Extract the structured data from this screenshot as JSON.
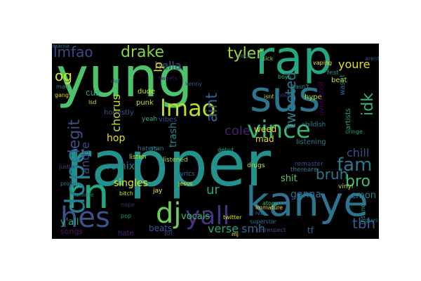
{
  "word_cloud": {
    "background": "#000000",
    "words": [
      {
        "text": "yung",
        "color": "#4cc26c"
      },
      {
        "text": "rapper",
        "color": "#23918c"
      },
      {
        "text": "rap",
        "color": "#26a784"
      },
      {
        "text": "sus",
        "color": "#2b768e"
      },
      {
        "text": "kanye",
        "color": "#2c738e"
      },
      {
        "text": "rn",
        "color": "#22a785"
      },
      {
        "text": "vince",
        "color": "#34b879"
      },
      {
        "text": "dope",
        "color": "#287d8e"
      },
      {
        "text": "lmao",
        "color": "#b8de29"
      },
      {
        "text": "hes",
        "color": "#3b538b"
      },
      {
        "text": "dj",
        "color": "#6ccd5a"
      },
      {
        "text": "yall",
        "color": "#46327e"
      },
      {
        "text": "drake",
        "color": "#84d44b"
      },
      {
        "text": "lmfao",
        "color": "#3e4a89"
      },
      {
        "text": "tyler",
        "color": "#a2da37"
      },
      {
        "text": "fam",
        "color": "#2a788e"
      },
      {
        "text": "tweeted",
        "color": "#2a7b8e"
      },
      {
        "text": "legit",
        "color": "#3c4f8a"
      },
      {
        "text": "og",
        "color": "#dde318"
      },
      {
        "text": "aint",
        "color": "#32648e"
      },
      {
        "text": "cole",
        "color": "#481e6f"
      },
      {
        "text": "tbh",
        "color": "#355e8d"
      },
      {
        "text": "bro",
        "color": "#3fbc73"
      },
      {
        "text": "bruh",
        "color": "#2a788e"
      },
      {
        "text": "idk",
        "color": "#31b57b"
      },
      {
        "text": "smh",
        "color": "#2f6b8e"
      },
      {
        "text": "verse",
        "color": "#22a884"
      },
      {
        "text": "chill",
        "color": "#3d4d8a"
      },
      {
        "text": "andre",
        "color": "#3e4989"
      },
      {
        "text": "hop",
        "color": "#e5e419"
      },
      {
        "text": "chorus",
        "color": "#c8e020"
      },
      {
        "text": "singles",
        "color": "#e3e418"
      },
      {
        "text": "remix",
        "color": "#26818e"
      },
      {
        "text": "hella",
        "color": "#3b528b"
      },
      {
        "text": "youre",
        "color": "#dde318"
      },
      {
        "text": "cmon",
        "color": "#24868e"
      },
      {
        "text": "gonna",
        "color": "#2c718e"
      },
      {
        "text": "shit",
        "color": "#5ec962"
      },
      {
        "text": "lp",
        "color": "#ece51b"
      },
      {
        "text": "beats",
        "color": "#39568c"
      },
      {
        "text": "ur",
        "color": "#22a785"
      },
      {
        "text": "tf",
        "color": "#34618d"
      },
      {
        "text": "trash",
        "color": "#24878e"
      },
      {
        "text": "vocals",
        "color": "#3aba76"
      },
      {
        "text": "y'all",
        "color": "#25ac82"
      },
      {
        "text": "songs",
        "color": "#481c6e"
      },
      {
        "text": "weed",
        "color": "#ece51b"
      },
      {
        "text": "mad",
        "color": "#dde318"
      },
      {
        "text": "cuz",
        "color": "#1fa088"
      },
      {
        "text": "dude",
        "color": "#cae11f"
      },
      {
        "text": "punk",
        "color": "#cae11f"
      },
      {
        "text": "vibes",
        "color": "#3e4c8a"
      },
      {
        "text": "hate",
        "color": "#482475"
      },
      {
        "text": "lol",
        "color": "#453882"
      },
      {
        "text": "hype",
        "color": "#c8e020"
      },
      {
        "text": "listening",
        "color": "#287c8e"
      },
      {
        "text": "wasnt",
        "color": "#2c718e"
      },
      {
        "text": "beat",
        "color": "#bddf26"
      },
      {
        "text": "artists",
        "color": "#20a386"
      },
      {
        "text": "overrated",
        "color": "#440154"
      },
      {
        "text": "honestly",
        "color": "#38588c"
      },
      {
        "text": "haters",
        "color": "#2f6c8e"
      },
      {
        "text": "stan",
        "color": "#25848e"
      },
      {
        "text": "drugs",
        "color": "#c0df25"
      },
      {
        "text": "listened",
        "color": "#a2da37"
      },
      {
        "text": "yeah",
        "color": "#2fb47c"
      },
      {
        "text": "jay",
        "color": "#fde725"
      },
      {
        "text": "lyrics",
        "color": "#2d708e"
      },
      {
        "text": "remaster",
        "color": "#3e4a89"
      },
      {
        "text": "fest",
        "color": "#21918c"
      },
      {
        "text": "vinyl",
        "color": "#c0df25"
      },
      {
        "text": "insane",
        "color": "#21918c"
      },
      {
        "text": "childish",
        "color": "#26818e"
      },
      {
        "text": "thereare",
        "color": "#2a788e"
      },
      {
        "text": "listen",
        "color": "#cae11f"
      },
      {
        "text": "vocal",
        "color": "#2c728e"
      },
      {
        "text": "bout",
        "color": "#433e85"
      },
      {
        "text": "boys",
        "color": "#2fb47c"
      },
      {
        "text": "justin",
        "color": "#3f4788"
      },
      {
        "text": "prolly",
        "color": "#26828e"
      },
      {
        "text": "jesus",
        "color": "#dde318"
      },
      {
        "text": "debut",
        "color": "#27ad81"
      },
      {
        "text": "superstar",
        "color": "#2d708e"
      },
      {
        "text": "immature",
        "color": "#dde318"
      },
      {
        "text": "disrespect",
        "color": "#3f4788"
      },
      {
        "text": "twitter",
        "color": "#dde318"
      },
      {
        "text": "cringe",
        "color": "#20a386"
      },
      {
        "text": "tweets",
        "color": "#481467"
      },
      {
        "text": "kenny",
        "color": "#3b528b"
      },
      {
        "text": "arent",
        "color": "#39558c"
      },
      {
        "text": "guys",
        "color": "#2a788e"
      },
      {
        "text": "man",
        "color": "#26828e"
      },
      {
        "text": "gang",
        "color": "#dde318"
      },
      {
        "text": "lsd",
        "color": "#cae11f"
      },
      {
        "text": "def",
        "color": "#3e4c8a"
      },
      {
        "text": "sick",
        "color": "#8fd744"
      },
      {
        "text": "isnt",
        "color": "#c0df25"
      },
      {
        "text": "hasn't",
        "color": "#1f9e89"
      },
      {
        "text": "vaping",
        "color": "#fde725"
      },
      {
        "text": "bitch",
        "color": "#cae11f"
      },
      {
        "text": "lemme",
        "color": "#2a788e"
      },
      {
        "text": "pop",
        "color": "#1f9e89"
      },
      {
        "text": "nope",
        "color": "#482878"
      },
      {
        "text": "mj",
        "color": "#fde725"
      },
      {
        "text": "ive",
        "color": "#2c728e"
      },
      {
        "text": "atom",
        "color": "#3aba76"
      },
      {
        "text": "mania",
        "color": "#2c728e"
      }
    ]
  }
}
